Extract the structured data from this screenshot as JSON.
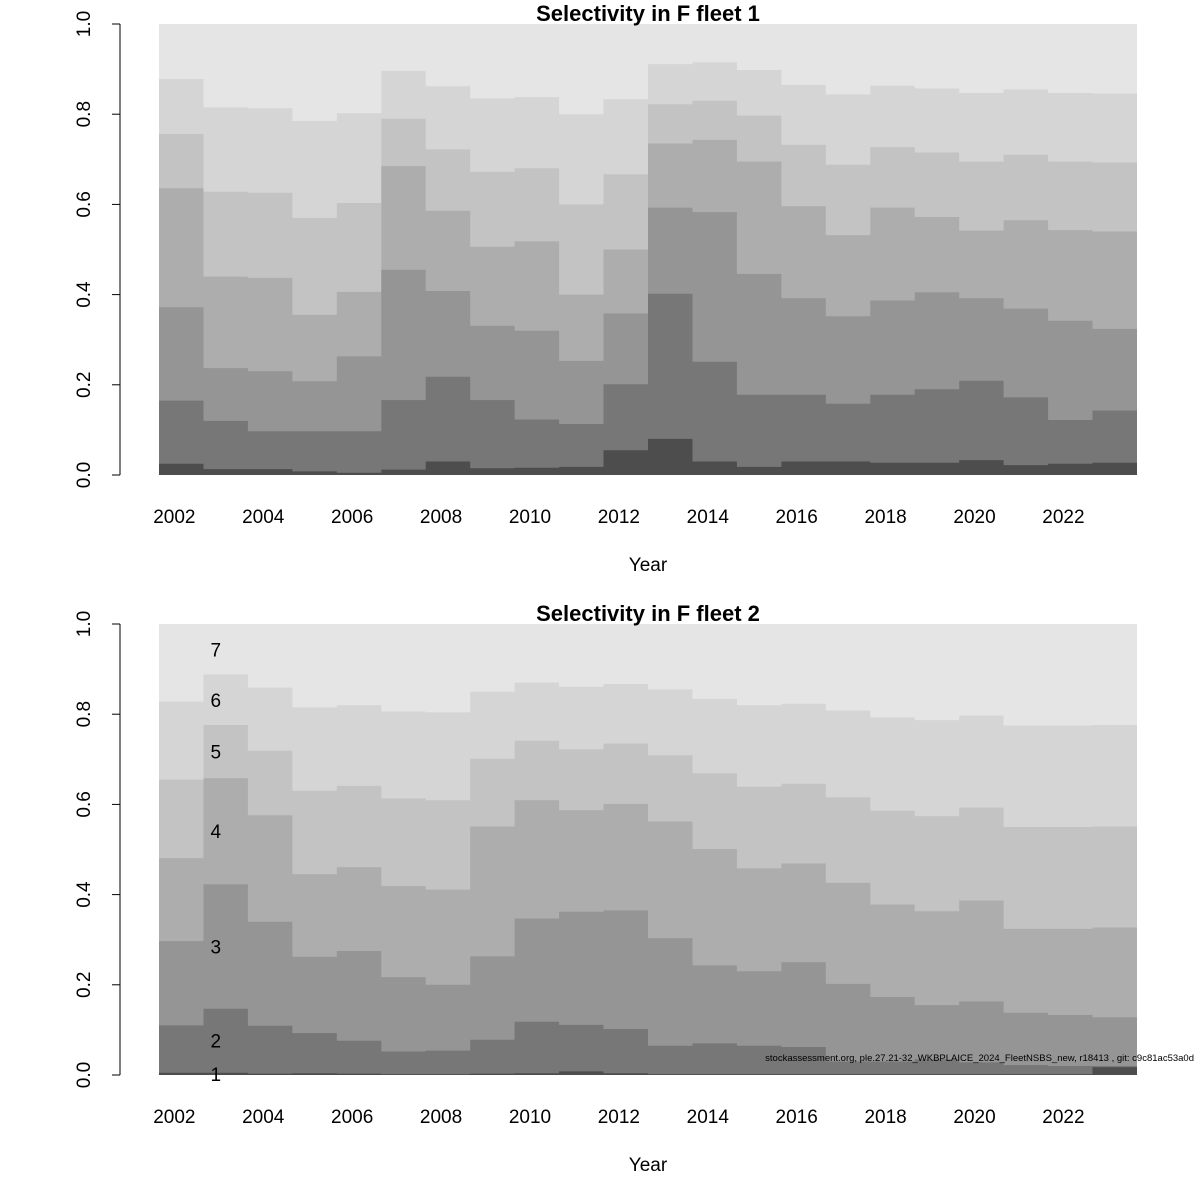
{
  "footnote": "stockassessment.org, ple.27.21-32_WKBPLAICE_2024_FleetNSBS_new, r18413 , git: c9c81ac53a0d",
  "colors": [
    "#4d4d4d",
    "#777777",
    "#959595",
    "#adadad",
    "#c3c3c3",
    "#d5d5d5",
    "#e5e5e5"
  ],
  "chart_data": [
    {
      "type": "area",
      "title": "Selectivity in F fleet 1",
      "xlabel": "Year",
      "ylabel": "",
      "ylim": [
        0,
        1
      ],
      "yticks": [
        "0.0",
        "0.2",
        "0.4",
        "0.6",
        "0.8",
        "1.0"
      ],
      "xticks": [
        "2002",
        "2004",
        "2006",
        "2008",
        "2010",
        "2012",
        "2014",
        "2016",
        "2018",
        "2020",
        "2022"
      ],
      "x": [
        2002,
        2003,
        2004,
        2005,
        2006,
        2007,
        2008,
        2009,
        2010,
        2011,
        2012,
        2013,
        2014,
        2015,
        2016,
        2017,
        2018,
        2019,
        2020,
        2021,
        2022,
        2023
      ],
      "cumulative": [
        [
          0.025,
          0.013,
          0.013,
          0.008,
          0.005,
          0.012,
          0.03,
          0.015,
          0.016,
          0.018,
          0.055,
          0.08,
          0.03,
          0.018,
          0.03,
          0.03,
          0.027,
          0.027,
          0.033,
          0.022,
          0.025,
          0.027
        ],
        [
          0.165,
          0.12,
          0.097,
          0.097,
          0.097,
          0.166,
          0.218,
          0.166,
          0.123,
          0.113,
          0.201,
          0.402,
          0.251,
          0.178,
          0.178,
          0.158,
          0.178,
          0.19,
          0.209,
          0.172,
          0.122,
          0.143
        ],
        [
          0.372,
          0.237,
          0.23,
          0.208,
          0.263,
          0.455,
          0.408,
          0.331,
          0.32,
          0.253,
          0.358,
          0.593,
          0.583,
          0.446,
          0.392,
          0.352,
          0.387,
          0.405,
          0.392,
          0.369,
          0.342,
          0.324
        ],
        [
          0.636,
          0.44,
          0.437,
          0.355,
          0.406,
          0.685,
          0.586,
          0.506,
          0.518,
          0.4,
          0.5,
          0.735,
          0.743,
          0.695,
          0.596,
          0.532,
          0.593,
          0.572,
          0.542,
          0.565,
          0.543,
          0.54
        ],
        [
          0.756,
          0.628,
          0.626,
          0.57,
          0.603,
          0.79,
          0.722,
          0.672,
          0.68,
          0.6,
          0.667,
          0.822,
          0.83,
          0.797,
          0.732,
          0.688,
          0.727,
          0.715,
          0.695,
          0.71,
          0.695,
          0.693
        ],
        [
          0.878,
          0.815,
          0.813,
          0.785,
          0.802,
          0.896,
          0.862,
          0.835,
          0.838,
          0.8,
          0.833,
          0.911,
          0.915,
          0.898,
          0.865,
          0.844,
          0.863,
          0.857,
          0.847,
          0.855,
          0.847,
          0.846
        ],
        [
          1,
          1,
          1,
          1,
          1,
          1,
          1,
          1,
          1,
          1,
          1,
          1,
          1,
          1,
          1,
          1,
          1,
          1,
          1,
          1,
          1,
          1
        ]
      ],
      "age_labels": []
    },
    {
      "type": "area",
      "title": "Selectivity in F fleet 2",
      "xlabel": "Year",
      "ylabel": "",
      "ylim": [
        0,
        1
      ],
      "yticks": [
        "0.0",
        "0.2",
        "0.4",
        "0.6",
        "0.8",
        "1.0"
      ],
      "xticks": [
        "2002",
        "2004",
        "2006",
        "2008",
        "2010",
        "2012",
        "2014",
        "2016",
        "2018",
        "2020",
        "2022"
      ],
      "x": [
        2002,
        2003,
        2004,
        2005,
        2006,
        2007,
        2008,
        2009,
        2010,
        2011,
        2012,
        2013,
        2014,
        2015,
        2016,
        2017,
        2018,
        2019,
        2020,
        2021,
        2022,
        2023
      ],
      "cumulative": [
        [
          0.005,
          0.005,
          0.003,
          0.004,
          0.003,
          0.002,
          0.002,
          0.003,
          0.004,
          0.008,
          0.004,
          0.002,
          0.002,
          0.002,
          0.002,
          0.002,
          0.002,
          0.002,
          0.002,
          0.002,
          0.002,
          0.017
        ],
        [
          0.11,
          0.147,
          0.109,
          0.093,
          0.076,
          0.052,
          0.054,
          0.078,
          0.118,
          0.111,
          0.102,
          0.065,
          0.07,
          0.065,
          0.062,
          0.03,
          0.03,
          0.035,
          0.028,
          0.022,
          0.02,
          0.02
        ],
        [
          0.297,
          0.423,
          0.34,
          0.262,
          0.275,
          0.217,
          0.2,
          0.263,
          0.347,
          0.362,
          0.365,
          0.303,
          0.243,
          0.23,
          0.25,
          0.202,
          0.173,
          0.155,
          0.163,
          0.138,
          0.133,
          0.128
        ],
        [
          0.481,
          0.658,
          0.576,
          0.445,
          0.461,
          0.419,
          0.411,
          0.551,
          0.609,
          0.587,
          0.601,
          0.562,
          0.501,
          0.458,
          0.469,
          0.426,
          0.378,
          0.363,
          0.387,
          0.324,
          0.324,
          0.327
        ],
        [
          0.655,
          0.776,
          0.719,
          0.63,
          0.641,
          0.613,
          0.609,
          0.701,
          0.741,
          0.722,
          0.735,
          0.709,
          0.669,
          0.639,
          0.646,
          0.616,
          0.586,
          0.574,
          0.593,
          0.55,
          0.55,
          0.551
        ],
        [
          0.828,
          0.888,
          0.859,
          0.815,
          0.82,
          0.806,
          0.804,
          0.85,
          0.87,
          0.861,
          0.867,
          0.855,
          0.834,
          0.82,
          0.823,
          0.808,
          0.793,
          0.787,
          0.797,
          0.775,
          0.775,
          0.776
        ],
        [
          1,
          1,
          1,
          1,
          1,
          1,
          1,
          1,
          1,
          1,
          1,
          1,
          1,
          1,
          1,
          1,
          1,
          1,
          1,
          1,
          1,
          1
        ]
      ],
      "age_labels": [
        "1",
        "2",
        "3",
        "4",
        "5",
        "6",
        "7"
      ]
    }
  ]
}
